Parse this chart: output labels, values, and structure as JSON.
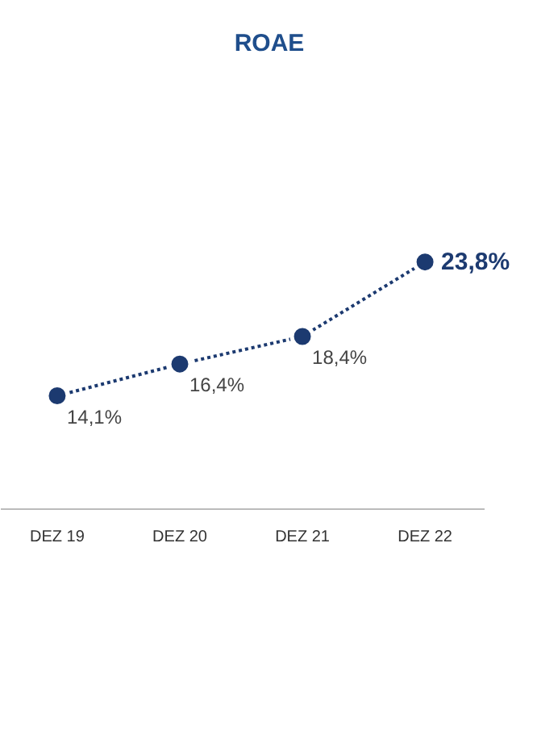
{
  "chart_data": {
    "type": "line",
    "title": "ROAE",
    "categories": [
      "DEZ 19",
      "DEZ 20",
      "DEZ 21",
      "DEZ 22"
    ],
    "series": [
      {
        "color": "#1c3a70",
        "values": [
          14.1,
          16.4,
          18.4,
          23.8
        ],
        "value_labels": [
          "14,1%",
          "16,4%",
          "18,4%",
          "23,8%"
        ]
      }
    ],
    "marker": "circle",
    "line_style": "dotted"
  }
}
